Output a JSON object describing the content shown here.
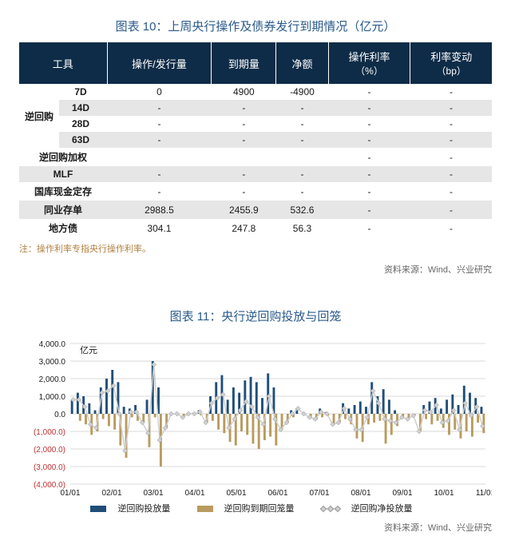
{
  "table": {
    "title": "图表 10：上周央行操作及债券发行到期情况（亿元）",
    "headers": [
      "工具",
      "操作/发行量",
      "到期量",
      "净额",
      "操作利率\n（%）",
      "利率变动\n（bp）"
    ],
    "group_label": "逆回购",
    "rows": [
      {
        "tool": "7D",
        "op": "0",
        "due": "4900",
        "net": "-4900",
        "rate": "-",
        "chg": "-",
        "alt": false,
        "in_group": true
      },
      {
        "tool": "14D",
        "op": "-",
        "due": "-",
        "net": "-",
        "rate": "-",
        "chg": "-",
        "alt": true,
        "in_group": true
      },
      {
        "tool": "28D",
        "op": "-",
        "due": "-",
        "net": "-",
        "rate": "-",
        "chg": "-",
        "alt": false,
        "in_group": true
      },
      {
        "tool": "63D",
        "op": "-",
        "due": "-",
        "net": "-",
        "rate": "-",
        "chg": "-",
        "alt": true,
        "in_group": true
      },
      {
        "tool": "逆回购加权",
        "op": "",
        "due": "",
        "net": "",
        "rate": "-",
        "chg": "-",
        "alt": false,
        "in_group": false
      },
      {
        "tool": "MLF",
        "op": "-",
        "due": "-",
        "net": "-",
        "rate": "-",
        "chg": "-",
        "alt": true,
        "in_group": false
      },
      {
        "tool": "国库现金定存",
        "op": "-",
        "due": "-",
        "net": "-",
        "rate": "-",
        "chg": "-",
        "alt": false,
        "in_group": false
      },
      {
        "tool": "同业存单",
        "op": "2988.5",
        "due": "2455.9",
        "net": "532.6",
        "rate": "-",
        "chg": "-",
        "alt": true,
        "in_group": false
      },
      {
        "tool": "地方债",
        "op": "304.1",
        "due": "247.8",
        "net": "56.3",
        "rate": "-",
        "chg": "-",
        "alt": false,
        "in_group": false
      }
    ],
    "note": "注：操作利率专指央行操作利率。",
    "source": "资料来源：Wind、兴业研究"
  },
  "chart": {
    "title": "图表 11：央行逆回购投放与回笼",
    "y_unit": "亿元",
    "y_labels": [
      {
        "v": 4000,
        "t": "4,000.0",
        "neg": false
      },
      {
        "v": 3000,
        "t": "3,000.0",
        "neg": false
      },
      {
        "v": 2000,
        "t": "2,000.0",
        "neg": false
      },
      {
        "v": 1000,
        "t": "1,000.0",
        "neg": false
      },
      {
        "v": 0,
        "t": "0.0",
        "neg": false
      },
      {
        "v": -1000,
        "t": "(1,000.0)",
        "neg": true
      },
      {
        "v": -2000,
        "t": "(2,000.0)",
        "neg": true
      },
      {
        "v": -3000,
        "t": "(3,000.0)",
        "neg": true
      },
      {
        "v": -4000,
        "t": "(4,000.0)",
        "neg": true
      }
    ],
    "x_labels": [
      "01/01",
      "02/01",
      "03/01",
      "04/01",
      "05/01",
      "06/01",
      "07/01",
      "08/01",
      "09/01",
      "10/01",
      "11/01"
    ],
    "colors": {
      "bar_inject": "#1f4e79",
      "bar_withdraw": "#b89b5e",
      "line_net": "#d0d0d0",
      "grid": "#d9d9d9",
      "bg": "#ffffff",
      "text": "#1a1a1a",
      "neg_text": "#c03030"
    },
    "legend": {
      "inject": "逆回购投放量",
      "withdraw": "逆回购到期回笼量",
      "net": "逆回购净投放量"
    },
    "ylim": [
      -4000,
      4000
    ],
    "xrange": [
      0,
      310
    ],
    "data": {
      "inject": [
        800,
        1200,
        1000,
        600,
        200,
        1500,
        2000,
        2500,
        1800,
        400,
        300,
        500,
        0,
        800,
        3000,
        1500,
        0,
        0,
        0,
        0,
        0,
        0,
        200,
        0,
        1000,
        1800,
        2200,
        800,
        1500,
        1200,
        1900,
        2100,
        1800,
        900,
        2300,
        1500,
        0,
        0,
        200,
        300,
        0,
        0,
        0,
        300,
        100,
        0,
        0,
        600,
        300,
        500,
        700,
        400,
        1800,
        1000,
        1400,
        800,
        200,
        0,
        0,
        0,
        0,
        500,
        700,
        900,
        300,
        800,
        1100,
        500,
        1600,
        1200,
        900,
        400
      ],
      "withdraw": [
        0,
        -400,
        -600,
        -1200,
        -1000,
        -300,
        -700,
        -900,
        -1800,
        -2500,
        -200,
        -400,
        -500,
        -1900,
        -200,
        -3000,
        -800,
        0,
        0,
        -200,
        0,
        0,
        -100,
        -500,
        -400,
        -900,
        -1100,
        -1600,
        -1800,
        -1000,
        -1200,
        -1700,
        -2000,
        -1500,
        -1300,
        -1800,
        -900,
        -500,
        -200,
        0,
        0,
        -200,
        -300,
        -200,
        -100,
        -600,
        -500,
        -300,
        -600,
        -1400,
        -1600,
        -600,
        -500,
        -400,
        -1700,
        -1200,
        -700,
        -200,
        -300,
        -100,
        -1000,
        -300,
        -600,
        -400,
        -800,
        -1200,
        -900,
        -1400,
        -1000,
        -1300,
        -500,
        -1100
      ],
      "net": [
        800,
        800,
        400,
        -600,
        -800,
        1200,
        1300,
        1600,
        0,
        -2100,
        100,
        100,
        -500,
        -1100,
        2800,
        -1500,
        -800,
        0,
        0,
        -200,
        0,
        0,
        100,
        -500,
        600,
        900,
        1100,
        -800,
        -300,
        200,
        700,
        400,
        -200,
        -600,
        1000,
        -300,
        -900,
        -500,
        0,
        300,
        0,
        -200,
        -300,
        100,
        0,
        -600,
        -500,
        300,
        -300,
        -900,
        -900,
        -200,
        1300,
        600,
        -300,
        -400,
        -500,
        -200,
        -300,
        -100,
        -1000,
        200,
        100,
        500,
        -500,
        -400,
        200,
        -900,
        600,
        -100,
        400,
        -700
      ]
    },
    "source": "资料来源：Wind、兴业研究"
  }
}
